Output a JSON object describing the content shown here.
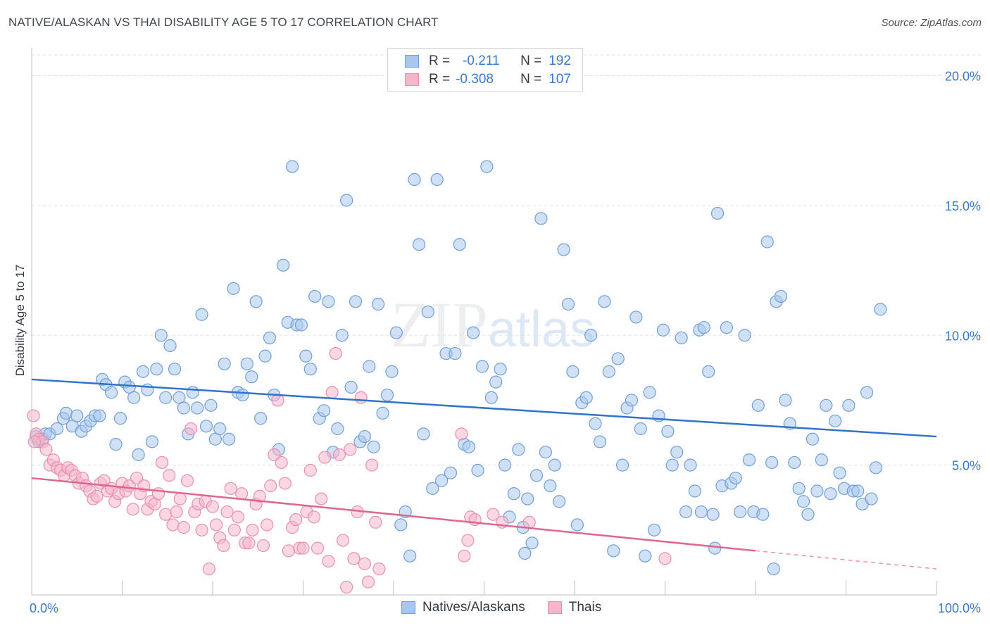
{
  "title": "NATIVE/ALASKAN VS THAI DISABILITY AGE 5 TO 17 CORRELATION CHART",
  "source": "Source: ZipAtlas.com",
  "watermark": {
    "zip": "ZIP",
    "atlas": "atlas"
  },
  "legend": {
    "rows": [
      {
        "r_label": "R =",
        "r_value": "-0.211",
        "n_label": "N =",
        "n_value": "192"
      },
      {
        "r_label": "R =",
        "r_value": "-0.308",
        "n_label": "N =",
        "n_value": "107"
      }
    ]
  },
  "colors": {
    "blue_fill": "#a9c6ec",
    "blue_stroke": "#6f9fd8",
    "blue_line": "#2f74c9",
    "pink_fill": "#f5b6ca",
    "pink_stroke": "#e98fae",
    "pink_line": "#e26590",
    "grid": "#dde1e6",
    "axis_text": "#3a78c8"
  },
  "chart_data": {
    "type": "scatter",
    "title": "NATIVE/ALASKAN VS THAI DISABILITY AGE 5 TO 17 CORRELATION CHART",
    "xlabel": "",
    "ylabel": "Disability Age 5 to 17",
    "xlim": [
      0,
      100
    ],
    "ylim": [
      0,
      20.8
    ],
    "x_tick_labels": [
      "0.0%",
      "100.0%"
    ],
    "y_ticks": [
      5,
      10,
      15,
      20
    ],
    "y_tick_labels": [
      "5.0%",
      "10.0%",
      "15.0%",
      "20.0%"
    ],
    "legend_position": "top-center",
    "series": [
      {
        "name": "Natives/Alaskans",
        "R": -0.211,
        "N": 192,
        "trend": {
          "x": [
            0,
            100
          ],
          "y": [
            8.3,
            6.1
          ]
        },
        "points": [
          [
            0.5,
            6.1
          ],
          [
            0.8,
            5.9
          ],
          [
            1.2,
            6.0
          ],
          [
            1.5,
            6.2
          ],
          [
            2.0,
            6.2
          ],
          [
            2.8,
            6.4
          ],
          [
            3.5,
            6.8
          ],
          [
            3.8,
            7.0
          ],
          [
            4.5,
            6.5
          ],
          [
            5.0,
            6.9
          ],
          [
            5.5,
            6.3
          ],
          [
            6.0,
            6.5
          ],
          [
            6.5,
            6.7
          ],
          [
            7.0,
            6.9
          ],
          [
            7.5,
            6.9
          ],
          [
            7.8,
            8.3
          ],
          [
            8.2,
            8.1
          ],
          [
            8.8,
            7.8
          ],
          [
            9.3,
            5.8
          ],
          [
            9.8,
            6.8
          ],
          [
            10.3,
            8.2
          ],
          [
            10.8,
            8.0
          ],
          [
            11.3,
            7.6
          ],
          [
            11.8,
            5.4
          ],
          [
            12.3,
            8.6
          ],
          [
            12.8,
            7.9
          ],
          [
            13.3,
            5.9
          ],
          [
            13.8,
            8.7
          ],
          [
            14.3,
            10.0
          ],
          [
            14.8,
            7.6
          ],
          [
            15.3,
            9.6
          ],
          [
            15.8,
            8.7
          ],
          [
            16.3,
            7.6
          ],
          [
            16.8,
            7.2
          ],
          [
            17.3,
            6.2
          ],
          [
            17.8,
            7.8
          ],
          [
            18.3,
            7.2
          ],
          [
            18.8,
            10.8
          ],
          [
            19.3,
            6.5
          ],
          [
            19.8,
            7.3
          ],
          [
            20.3,
            6.0
          ],
          [
            20.8,
            6.4
          ],
          [
            21.3,
            8.9
          ],
          [
            21.8,
            6.0
          ],
          [
            22.3,
            11.8
          ],
          [
            22.8,
            7.8
          ],
          [
            23.3,
            7.7
          ],
          [
            23.8,
            8.9
          ],
          [
            24.3,
            8.4
          ],
          [
            24.8,
            11.3
          ],
          [
            25.3,
            6.8
          ],
          [
            25.8,
            9.2
          ],
          [
            26.3,
            9.9
          ],
          [
            26.8,
            7.7
          ],
          [
            27.3,
            5.6
          ],
          [
            27.8,
            12.7
          ],
          [
            28.3,
            10.5
          ],
          [
            28.8,
            16.5
          ],
          [
            29.3,
            10.4
          ],
          [
            29.8,
            10.4
          ],
          [
            30.3,
            9.2
          ],
          [
            30.8,
            8.7
          ],
          [
            31.3,
            11.5
          ],
          [
            31.8,
            6.8
          ],
          [
            32.3,
            7.1
          ],
          [
            32.8,
            11.3
          ],
          [
            33.3,
            5.5
          ],
          [
            33.8,
            6.4
          ],
          [
            34.3,
            10.0
          ],
          [
            34.8,
            15.2
          ],
          [
            35.3,
            8.0
          ],
          [
            35.8,
            11.3
          ],
          [
            36.3,
            5.9
          ],
          [
            36.8,
            6.1
          ],
          [
            37.3,
            8.8
          ],
          [
            37.8,
            5.7
          ],
          [
            38.3,
            11.2
          ],
          [
            38.8,
            7.0
          ],
          [
            39.3,
            7.7
          ],
          [
            39.8,
            8.6
          ],
          [
            40.3,
            10.1
          ],
          [
            40.8,
            2.7
          ],
          [
            41.3,
            3.2
          ],
          [
            41.8,
            1.5
          ],
          [
            42.3,
            16.0
          ],
          [
            42.8,
            13.5
          ],
          [
            43.3,
            6.2
          ],
          [
            43.8,
            10.9
          ],
          [
            44.3,
            4.1
          ],
          [
            44.8,
            16.0
          ],
          [
            45.3,
            4.4
          ],
          [
            45.8,
            9.3
          ],
          [
            46.3,
            4.7
          ],
          [
            46.8,
            9.3
          ],
          [
            47.3,
            13.5
          ],
          [
            47.8,
            5.8
          ],
          [
            48.3,
            5.7
          ],
          [
            48.8,
            10.1
          ],
          [
            49.3,
            4.8
          ],
          [
            49.8,
            8.8
          ],
          [
            50.3,
            16.5
          ],
          [
            50.8,
            7.6
          ],
          [
            51.3,
            8.2
          ],
          [
            51.8,
            8.7
          ],
          [
            52.3,
            5.0
          ],
          [
            52.8,
            3.0
          ],
          [
            53.3,
            3.9
          ],
          [
            53.8,
            5.6
          ],
          [
            54.3,
            2.6
          ],
          [
            54.8,
            3.7
          ],
          [
            55.3,
            2.0
          ],
          [
            55.8,
            4.6
          ],
          [
            56.3,
            14.5
          ],
          [
            56.8,
            5.5
          ],
          [
            57.3,
            4.2
          ],
          [
            57.8,
            5.0
          ],
          [
            58.3,
            3.6
          ],
          [
            58.8,
            13.3
          ],
          [
            59.3,
            11.2
          ],
          [
            59.8,
            8.6
          ],
          [
            60.3,
            2.7
          ],
          [
            60.8,
            7.4
          ],
          [
            61.3,
            7.6
          ],
          [
            61.8,
            10.0
          ],
          [
            62.3,
            6.6
          ],
          [
            62.8,
            5.9
          ],
          [
            63.3,
            11.3
          ],
          [
            63.8,
            8.6
          ],
          [
            64.3,
            1.7
          ],
          [
            64.8,
            9.1
          ],
          [
            65.3,
            5.0
          ],
          [
            65.8,
            7.2
          ],
          [
            66.3,
            7.5
          ],
          [
            66.8,
            10.7
          ],
          [
            67.3,
            6.4
          ],
          [
            67.8,
            1.5
          ],
          [
            68.3,
            7.8
          ],
          [
            68.8,
            2.5
          ],
          [
            69.3,
            6.9
          ],
          [
            69.8,
            10.2
          ],
          [
            70.3,
            6.3
          ],
          [
            70.8,
            5.0
          ],
          [
            71.3,
            5.5
          ],
          [
            71.8,
            9.9
          ],
          [
            72.3,
            3.2
          ],
          [
            72.8,
            5.0
          ],
          [
            73.3,
            4.0
          ],
          [
            73.8,
            10.2
          ],
          [
            74.3,
            10.3
          ],
          [
            74.8,
            8.6
          ],
          [
            75.3,
            3.1
          ],
          [
            75.8,
            14.7
          ],
          [
            76.3,
            4.2
          ],
          [
            76.8,
            10.3
          ],
          [
            77.3,
            4.3
          ],
          [
            77.8,
            4.5
          ],
          [
            78.3,
            3.2
          ],
          [
            78.8,
            10.0
          ],
          [
            79.3,
            5.2
          ],
          [
            79.8,
            3.2
          ],
          [
            80.3,
            7.3
          ],
          [
            80.8,
            3.1
          ],
          [
            81.3,
            13.6
          ],
          [
            81.8,
            5.1
          ],
          [
            82.3,
            11.3
          ],
          [
            82.8,
            11.5
          ],
          [
            83.3,
            7.5
          ],
          [
            83.8,
            6.6
          ],
          [
            84.3,
            5.1
          ],
          [
            84.8,
            4.1
          ],
          [
            85.3,
            3.6
          ],
          [
            85.8,
            3.1
          ],
          [
            86.3,
            6.0
          ],
          [
            86.8,
            4.0
          ],
          [
            87.3,
            5.2
          ],
          [
            87.8,
            7.3
          ],
          [
            88.3,
            3.9
          ],
          [
            88.8,
            6.7
          ],
          [
            89.3,
            4.7
          ],
          [
            89.8,
            4.1
          ],
          [
            90.3,
            7.3
          ],
          [
            90.8,
            4.0
          ],
          [
            91.3,
            4.0
          ],
          [
            91.8,
            3.5
          ],
          [
            92.3,
            7.8
          ],
          [
            92.8,
            3.7
          ],
          [
            93.3,
            4.9
          ],
          [
            93.8,
            11.0
          ],
          [
            54.5,
            1.6
          ],
          [
            82.0,
            1.0
          ],
          [
            75.5,
            1.8
          ],
          [
            74.0,
            3.2
          ]
        ]
      },
      {
        "name": "Thais",
        "R": -0.308,
        "N": 107,
        "trend": {
          "x": [
            0,
            80
          ],
          "y": [
            4.5,
            1.7
          ]
        },
        "trend_dashed": {
          "x": [
            80,
            100
          ],
          "y": [
            1.7,
            1.0
          ]
        },
        "points": [
          [
            0.2,
            6.9
          ],
          [
            0.5,
            6.2
          ],
          [
            0.8,
            6.0
          ],
          [
            1.2,
            5.9
          ],
          [
            1.6,
            5.6
          ],
          [
            2.0,
            5.0
          ],
          [
            2.4,
            5.2
          ],
          [
            2.8,
            4.9
          ],
          [
            3.2,
            4.8
          ],
          [
            3.6,
            4.6
          ],
          [
            4.0,
            4.9
          ],
          [
            4.4,
            4.8
          ],
          [
            4.8,
            4.6
          ],
          [
            5.2,
            4.3
          ],
          [
            5.6,
            4.5
          ],
          [
            6.0,
            4.2
          ],
          [
            6.4,
            4.0
          ],
          [
            6.8,
            3.7
          ],
          [
            7.2,
            3.8
          ],
          [
            7.6,
            4.3
          ],
          [
            8.0,
            4.4
          ],
          [
            8.4,
            4.0
          ],
          [
            8.8,
            4.1
          ],
          [
            9.2,
            3.6
          ],
          [
            9.6,
            3.9
          ],
          [
            10.0,
            4.3
          ],
          [
            10.4,
            4.0
          ],
          [
            10.8,
            4.2
          ],
          [
            11.2,
            3.3
          ],
          [
            11.6,
            4.5
          ],
          [
            12.0,
            3.9
          ],
          [
            12.4,
            4.2
          ],
          [
            12.8,
            3.3
          ],
          [
            13.2,
            3.6
          ],
          [
            13.6,
            3.5
          ],
          [
            14.0,
            3.9
          ],
          [
            14.4,
            5.1
          ],
          [
            14.8,
            3.1
          ],
          [
            15.2,
            4.6
          ],
          [
            15.6,
            2.7
          ],
          [
            16.0,
            3.2
          ],
          [
            16.4,
            3.7
          ],
          [
            16.8,
            2.6
          ],
          [
            17.2,
            4.4
          ],
          [
            17.6,
            6.4
          ],
          [
            18.0,
            3.2
          ],
          [
            18.4,
            3.5
          ],
          [
            18.8,
            2.5
          ],
          [
            19.2,
            3.6
          ],
          [
            19.6,
            1.0
          ],
          [
            20.0,
            3.4
          ],
          [
            20.4,
            2.7
          ],
          [
            20.8,
            2.2
          ],
          [
            21.2,
            1.9
          ],
          [
            21.6,
            3.2
          ],
          [
            22.0,
            4.1
          ],
          [
            22.4,
            2.5
          ],
          [
            22.8,
            3.0
          ],
          [
            23.2,
            3.9
          ],
          [
            23.6,
            2.0
          ],
          [
            24.0,
            2.0
          ],
          [
            24.4,
            2.5
          ],
          [
            24.8,
            3.5
          ],
          [
            25.2,
            3.8
          ],
          [
            25.6,
            1.9
          ],
          [
            26.0,
            2.7
          ],
          [
            26.4,
            4.2
          ],
          [
            26.8,
            5.4
          ],
          [
            27.2,
            7.5
          ],
          [
            27.6,
            5.1
          ],
          [
            28.0,
            4.3
          ],
          [
            28.4,
            1.7
          ],
          [
            28.8,
            2.6
          ],
          [
            29.2,
            2.9
          ],
          [
            29.6,
            1.8
          ],
          [
            30.0,
            1.8
          ],
          [
            30.4,
            3.2
          ],
          [
            30.8,
            4.8
          ],
          [
            31.2,
            3.0
          ],
          [
            31.6,
            1.8
          ],
          [
            32.0,
            3.7
          ],
          [
            32.4,
            5.3
          ],
          [
            32.8,
            1.3
          ],
          [
            33.2,
            7.8
          ],
          [
            33.6,
            9.3
          ],
          [
            34.0,
            5.4
          ],
          [
            34.4,
            2.1
          ],
          [
            34.8,
            0.3
          ],
          [
            35.2,
            5.6
          ],
          [
            35.6,
            1.4
          ],
          [
            36.0,
            3.2
          ],
          [
            36.4,
            7.6
          ],
          [
            36.8,
            1.2
          ],
          [
            37.2,
            0.5
          ],
          [
            37.6,
            5.0
          ],
          [
            38.0,
            2.8
          ],
          [
            38.4,
            1.0
          ],
          [
            47.5,
            6.2
          ],
          [
            47.8,
            1.5
          ],
          [
            48.2,
            2.1
          ],
          [
            48.5,
            3.0
          ],
          [
            49.0,
            2.9
          ],
          [
            51.0,
            3.1
          ],
          [
            52.0,
            2.8
          ],
          [
            55.0,
            2.8
          ],
          [
            70.0,
            1.4
          ],
          [
            0.3,
            5.9
          ]
        ]
      }
    ]
  }
}
